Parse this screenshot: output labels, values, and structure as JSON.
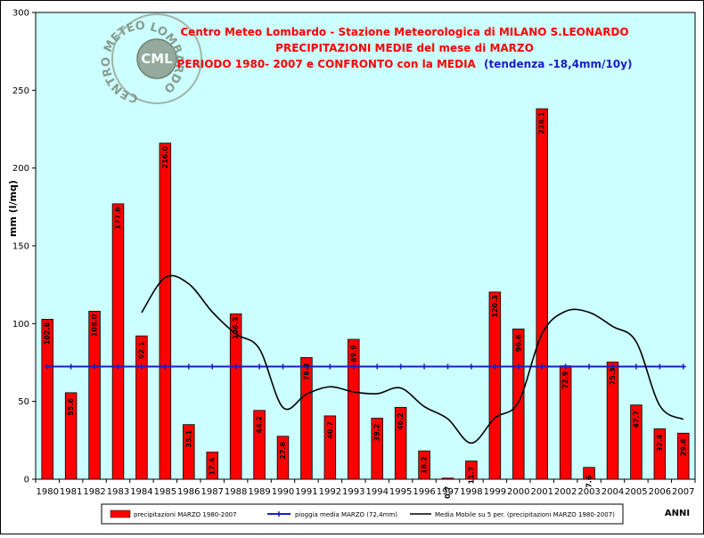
{
  "chart_data": {
    "type": "bar",
    "title_lines": [
      "Centro Meteo Lombardo - Stazione Meteorologica di MILANO S.LEONARDO",
      "PRECIPITAZIONI MEDIE del mese di MARZO"
    ],
    "title_line3": "PERIODO 1980- 2007 e CONFRONTO con la MEDIA",
    "trend_text": "(tendenza -18,4mm/10y)",
    "ylabel": "mm (l/mq)",
    "xlabel": "ANNI",
    "ylim": [
      0,
      300
    ],
    "yticks": [
      0,
      50,
      100,
      150,
      200,
      250,
      300
    ],
    "categories": [
      "1980",
      "1981",
      "1982",
      "1983",
      "1984",
      "1985",
      "1986",
      "1987",
      "1988",
      "1989",
      "1990",
      "1991",
      "1992",
      "1993",
      "1994",
      "1995",
      "1996",
      "1997",
      "1998",
      "1999",
      "2000",
      "2001",
      "2002",
      "2003",
      "2004",
      "2005",
      "2006",
      "2007"
    ],
    "series": [
      {
        "name": "precipitazioni MARZO 1980-2007",
        "type": "bar",
        "color": "#ff0000",
        "values": [
          102.8,
          55.6,
          108.0,
          177.0,
          92.1,
          216.0,
          35.1,
          17.4,
          106.3,
          44.2,
          27.6,
          78.2,
          40.7,
          89.9,
          39.2,
          46.2,
          18.2,
          0.7,
          11.7,
          120.3,
          96.6,
          238.1,
          72.9,
          7.6,
          75.3,
          47.7,
          32.4,
          29.6
        ],
        "labels": [
          "102.8",
          "55.6",
          "108.0",
          "177.0",
          "92.1",
          "216.0",
          "35.1",
          "17.4",
          "106.3",
          "44.2",
          "27.6",
          "78.2",
          "40.7",
          "89.9",
          "39.2",
          "46.2",
          "18.2",
          "0.7",
          "11.7",
          "120.3",
          "96.6",
          "238.1",
          "72.9",
          "7.6",
          "75.3",
          "47.7",
          "32.4",
          "29.6"
        ]
      },
      {
        "name": "pioggia media MARZO (72,4mm)",
        "type": "line",
        "color": "#1c1cc8",
        "values": [
          72.4,
          72.4,
          72.4,
          72.4,
          72.4,
          72.4,
          72.4,
          72.4,
          72.4,
          72.4,
          72.4,
          72.4,
          72.4,
          72.4,
          72.4,
          72.4,
          72.4,
          72.4,
          72.4,
          72.4,
          72.4,
          72.4,
          72.4,
          72.4,
          72.4,
          72.4,
          72.4,
          72.4
        ]
      },
      {
        "name": "Media Mobile su 5 per. (precipitazioni MARZO 1980-2007)",
        "type": "line",
        "color": "#000000",
        "values": [
          null,
          null,
          null,
          null,
          107.1,
          129.7,
          125.6,
          107.5,
          93.4,
          83.8,
          46.1,
          54.7,
          59.4,
          56.1,
          55.0,
          58.6,
          46.7,
          38.8,
          23.2,
          39.4,
          49.5,
          93.5,
          107.9,
          107.3,
          98.2,
          88.3,
          47.3,
          38.5
        ]
      }
    ],
    "plot_background": "#ccffff",
    "grid": false,
    "legend_position": "bottom",
    "logo": {
      "ring_text": "CENTRO METEO LOMBARDO",
      "center_text": "CML"
    },
    "colors": {
      "title": "#ff0000",
      "trend": "#1c1cc8",
      "frame": "#000000",
      "bar_label": "#000000"
    }
  }
}
